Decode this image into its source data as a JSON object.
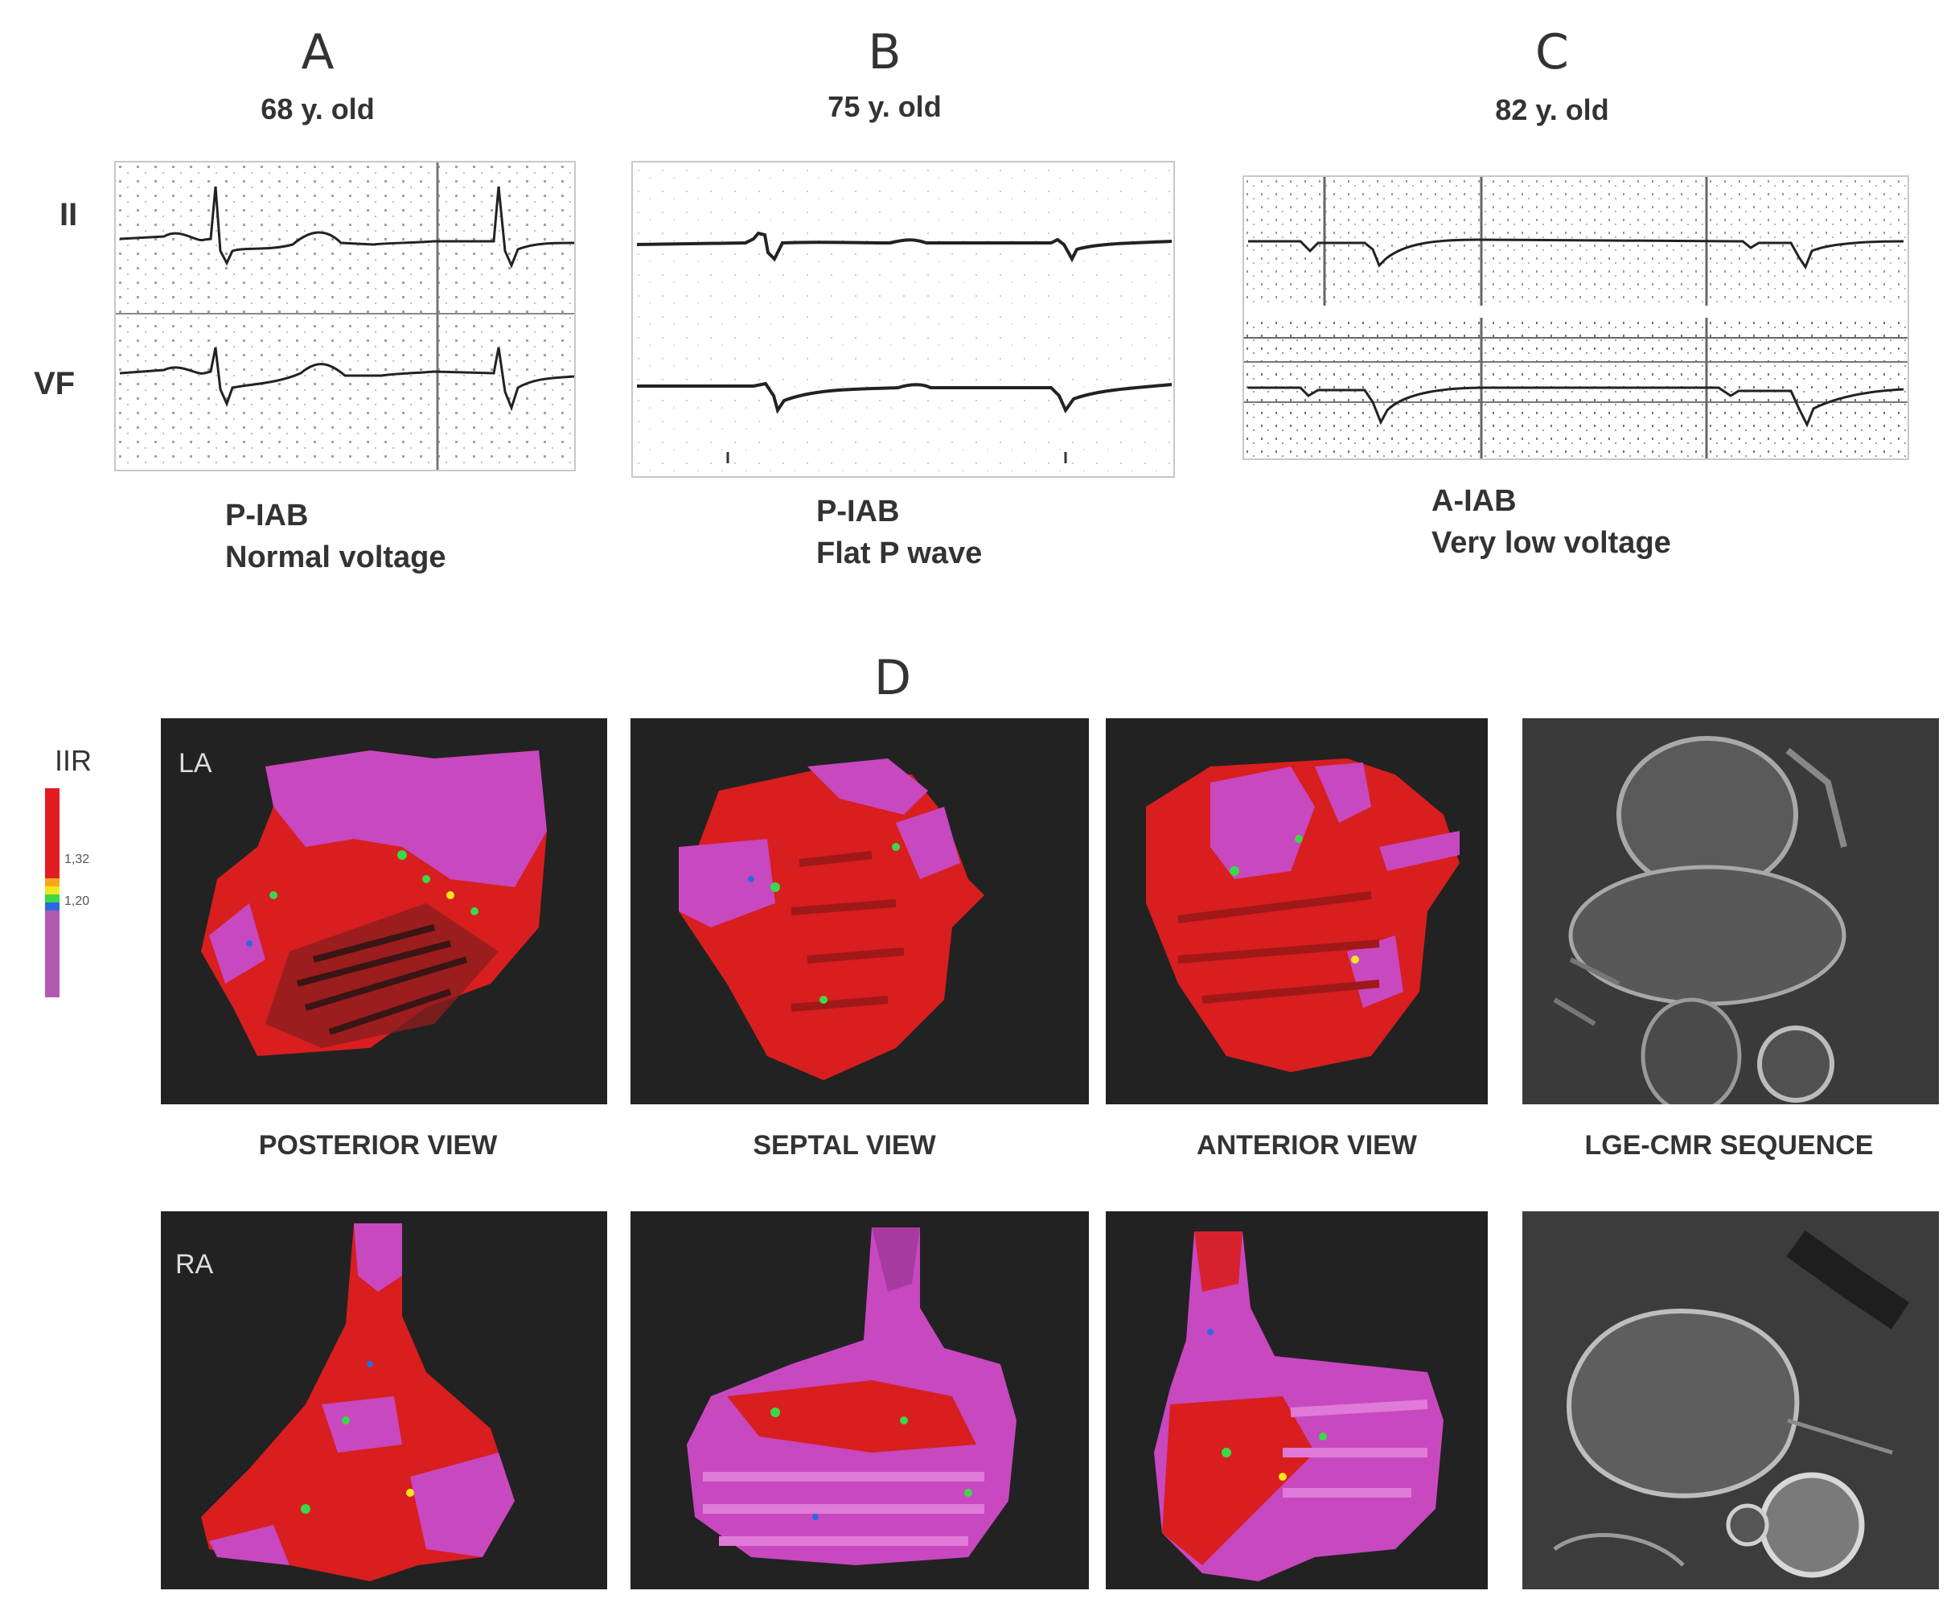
{
  "panels": [
    {
      "letter": "A",
      "age": "68 y. old",
      "caption_line1": "P-IAB",
      "caption_line2": "Normal voltage"
    },
    {
      "letter": "B",
      "age": "75 y. old",
      "caption_line1": "P-IAB",
      "caption_line2": "Flat P wave"
    },
    {
      "letter": "C",
      "age": "82 y. old",
      "caption_line1": "A-IAB",
      "caption_line2": "Very low voltage"
    }
  ],
  "leads": {
    "top": "II",
    "bottom": "VF"
  },
  "panel_d": {
    "letter": "D",
    "scale": {
      "title": "IIR",
      "tick_high": "1,32",
      "tick_low": "1,20"
    },
    "rows": [
      {
        "chamber": "LA"
      },
      {
        "chamber": "RA"
      }
    ],
    "views": [
      "POSTERIOR VIEW",
      "SEPTAL VIEW",
      "ANTERIOR VIEW",
      "LGE-CMR SEQUENCE"
    ],
    "colors": {
      "healthy": "#d81e1e",
      "fibrosis": "#c848c0",
      "border": "#3bd84a",
      "background": "#222222"
    }
  }
}
